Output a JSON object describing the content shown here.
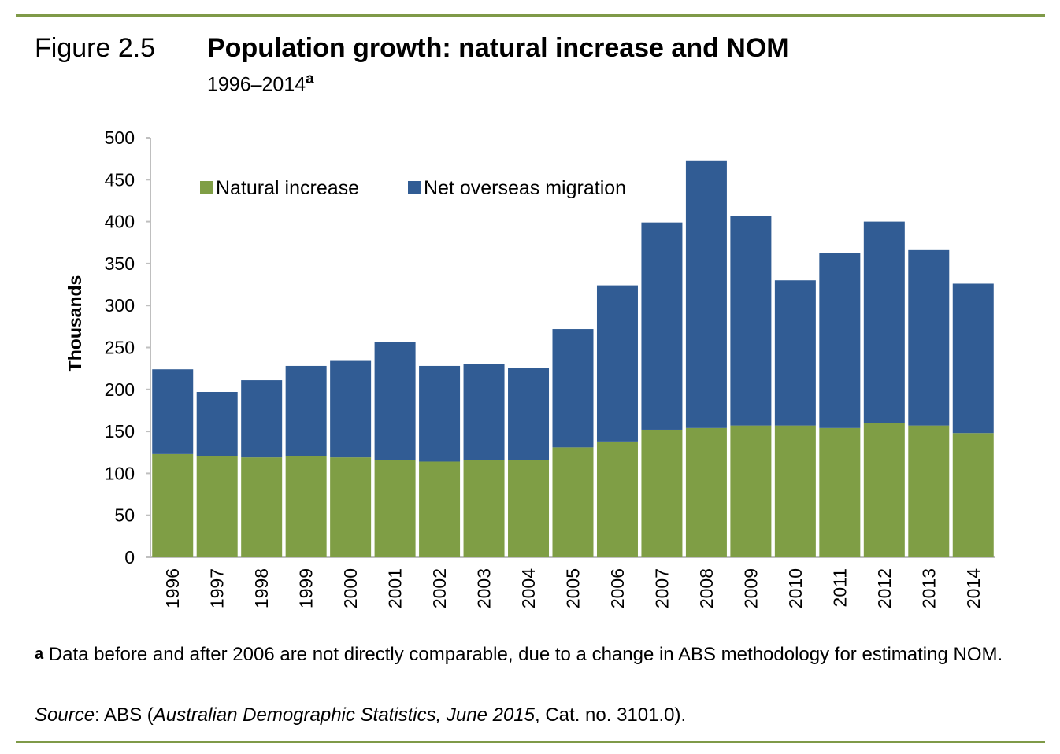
{
  "figure": {
    "number": "Figure 2.5",
    "title": "Population growth: natural increase and NOM",
    "subtitle": "1996–2014",
    "subtitle_note_mark": "a"
  },
  "footnote": {
    "mark": "a",
    "text": "Data before and after 2006 are not directly comparable, due to a change in ABS methodology for estimating NOM."
  },
  "source": {
    "label": "Source",
    "pre": ": ABS (",
    "publication": "Australian Demographic Statistics, June 2015",
    "post": ", Cat. no. 3101.0)."
  },
  "chart_data": {
    "type": "bar",
    "stacked": true,
    "title": "Population growth: natural increase and NOM",
    "xlabel": "",
    "ylabel": "Thousands",
    "ylim": [
      0,
      500
    ],
    "yticks": [
      0,
      50,
      100,
      150,
      200,
      250,
      300,
      350,
      400,
      450,
      500
    ],
    "grid": false,
    "legend_position": "top-left",
    "categories": [
      "1996",
      "1997",
      "1998",
      "1999",
      "2000",
      "2001",
      "2002",
      "2003",
      "2004",
      "2005",
      "2006",
      "2007",
      "2008",
      "2009",
      "2010",
      "2011",
      "2012",
      "2013",
      "2014"
    ],
    "series": [
      {
        "name": "Natural increase",
        "color": "#7f9e45",
        "values": [
          123,
          121,
          119,
          121,
          119,
          116,
          114,
          116,
          116,
          131,
          138,
          152,
          154,
          157,
          157,
          154,
          160,
          157,
          148
        ]
      },
      {
        "name": "Net overseas migration",
        "color": "#315c94",
        "values": [
          101,
          76,
          92,
          107,
          115,
          141,
          114,
          114,
          110,
          141,
          186,
          247,
          319,
          250,
          173,
          209,
          240,
          209,
          178
        ]
      }
    ]
  }
}
